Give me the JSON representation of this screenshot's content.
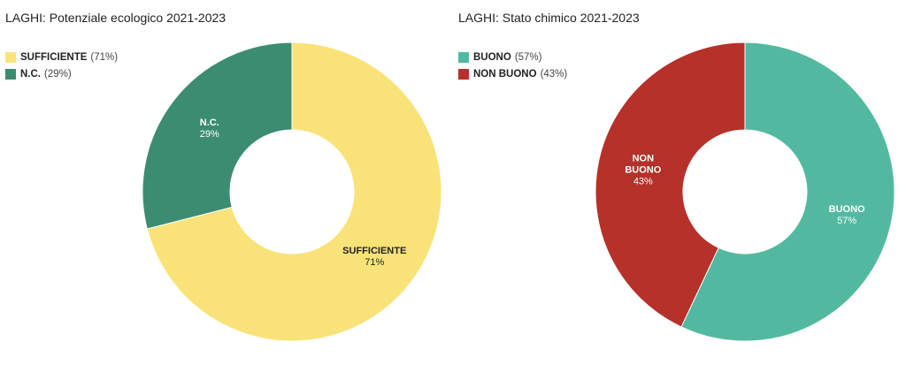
{
  "chart_data": [
    {
      "type": "pie",
      "title": "LAGHI: Potenziale ecologico 2021-2023",
      "categories": [
        "SUFFICIENTE",
        "N.C."
      ],
      "values": [
        71,
        29
      ],
      "unit": "%",
      "colors": [
        "#F9E278",
        "#3C8C72"
      ],
      "label_colors": [
        "#222222",
        "#ffffff"
      ],
      "legend": [
        {
          "name": "SUFFICIENTE",
          "pct": "(71%)"
        },
        {
          "name": "N.C.",
          "pct": "(29%)"
        }
      ],
      "slice_labels": [
        {
          "name": [
            "SUFFICIENTE"
          ],
          "pct": "71%"
        },
        {
          "name": [
            "N.C."
          ],
          "pct": "29%"
        }
      ],
      "legend_position": "top-left"
    },
    {
      "type": "pie",
      "title": "LAGHI: Stato chimico 2021-2023",
      "categories": [
        "BUONO",
        "NON BUONO"
      ],
      "values": [
        57,
        43
      ],
      "unit": "%",
      "colors": [
        "#52B9A0",
        "#B5312A"
      ],
      "label_colors": [
        "#ffffff",
        "#ffffff"
      ],
      "legend": [
        {
          "name": "BUONO",
          "pct": "(57%)"
        },
        {
          "name": "NON BUONO",
          "pct": "(43%)"
        }
      ],
      "slice_labels": [
        {
          "name": [
            "BUONO"
          ],
          "pct": "57%"
        },
        {
          "name": [
            "NON",
            "BUONO"
          ],
          "pct": "43%"
        }
      ],
      "legend_position": "top-left"
    }
  ]
}
